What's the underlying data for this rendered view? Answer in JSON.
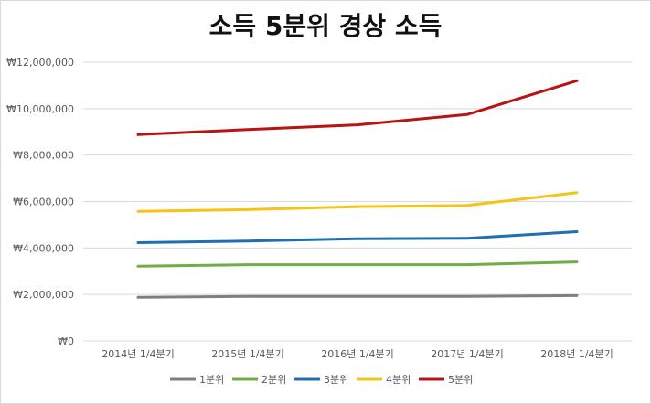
{
  "chart_data": {
    "type": "line",
    "title": "소득 5분위 경상 소득",
    "categories": [
      "2014년 1/4분기",
      "2015년 1/4분기",
      "2016년 1/4분기",
      "2017년 1/4분기",
      "2018년 1/4분기"
    ],
    "y_ticks": [
      "₩0",
      "₩2,000,000",
      "₩4,000,000",
      "₩6,000,000",
      "₩8,000,000",
      "₩10,000,000",
      "₩12,000,000"
    ],
    "ylim": [
      0,
      12000000
    ],
    "grid": true,
    "legend_position": "bottom",
    "series": [
      {
        "name": "1분위",
        "color": "#7f7f7f",
        "values": [
          1880000,
          1920000,
          1920000,
          1920000,
          1950000
        ]
      },
      {
        "name": "2분위",
        "color": "#70ad47",
        "values": [
          3220000,
          3280000,
          3280000,
          3280000,
          3400000
        ]
      },
      {
        "name": "3분위",
        "color": "#1f6fb2",
        "values": [
          4230000,
          4300000,
          4400000,
          4420000,
          4700000
        ]
      },
      {
        "name": "4분위",
        "color": "#f5c414",
        "values": [
          5580000,
          5650000,
          5780000,
          5830000,
          6380000
        ]
      },
      {
        "name": "5분위",
        "color": "#b81414",
        "values": [
          8880000,
          9100000,
          9300000,
          9750000,
          11200000
        ]
      }
    ]
  }
}
